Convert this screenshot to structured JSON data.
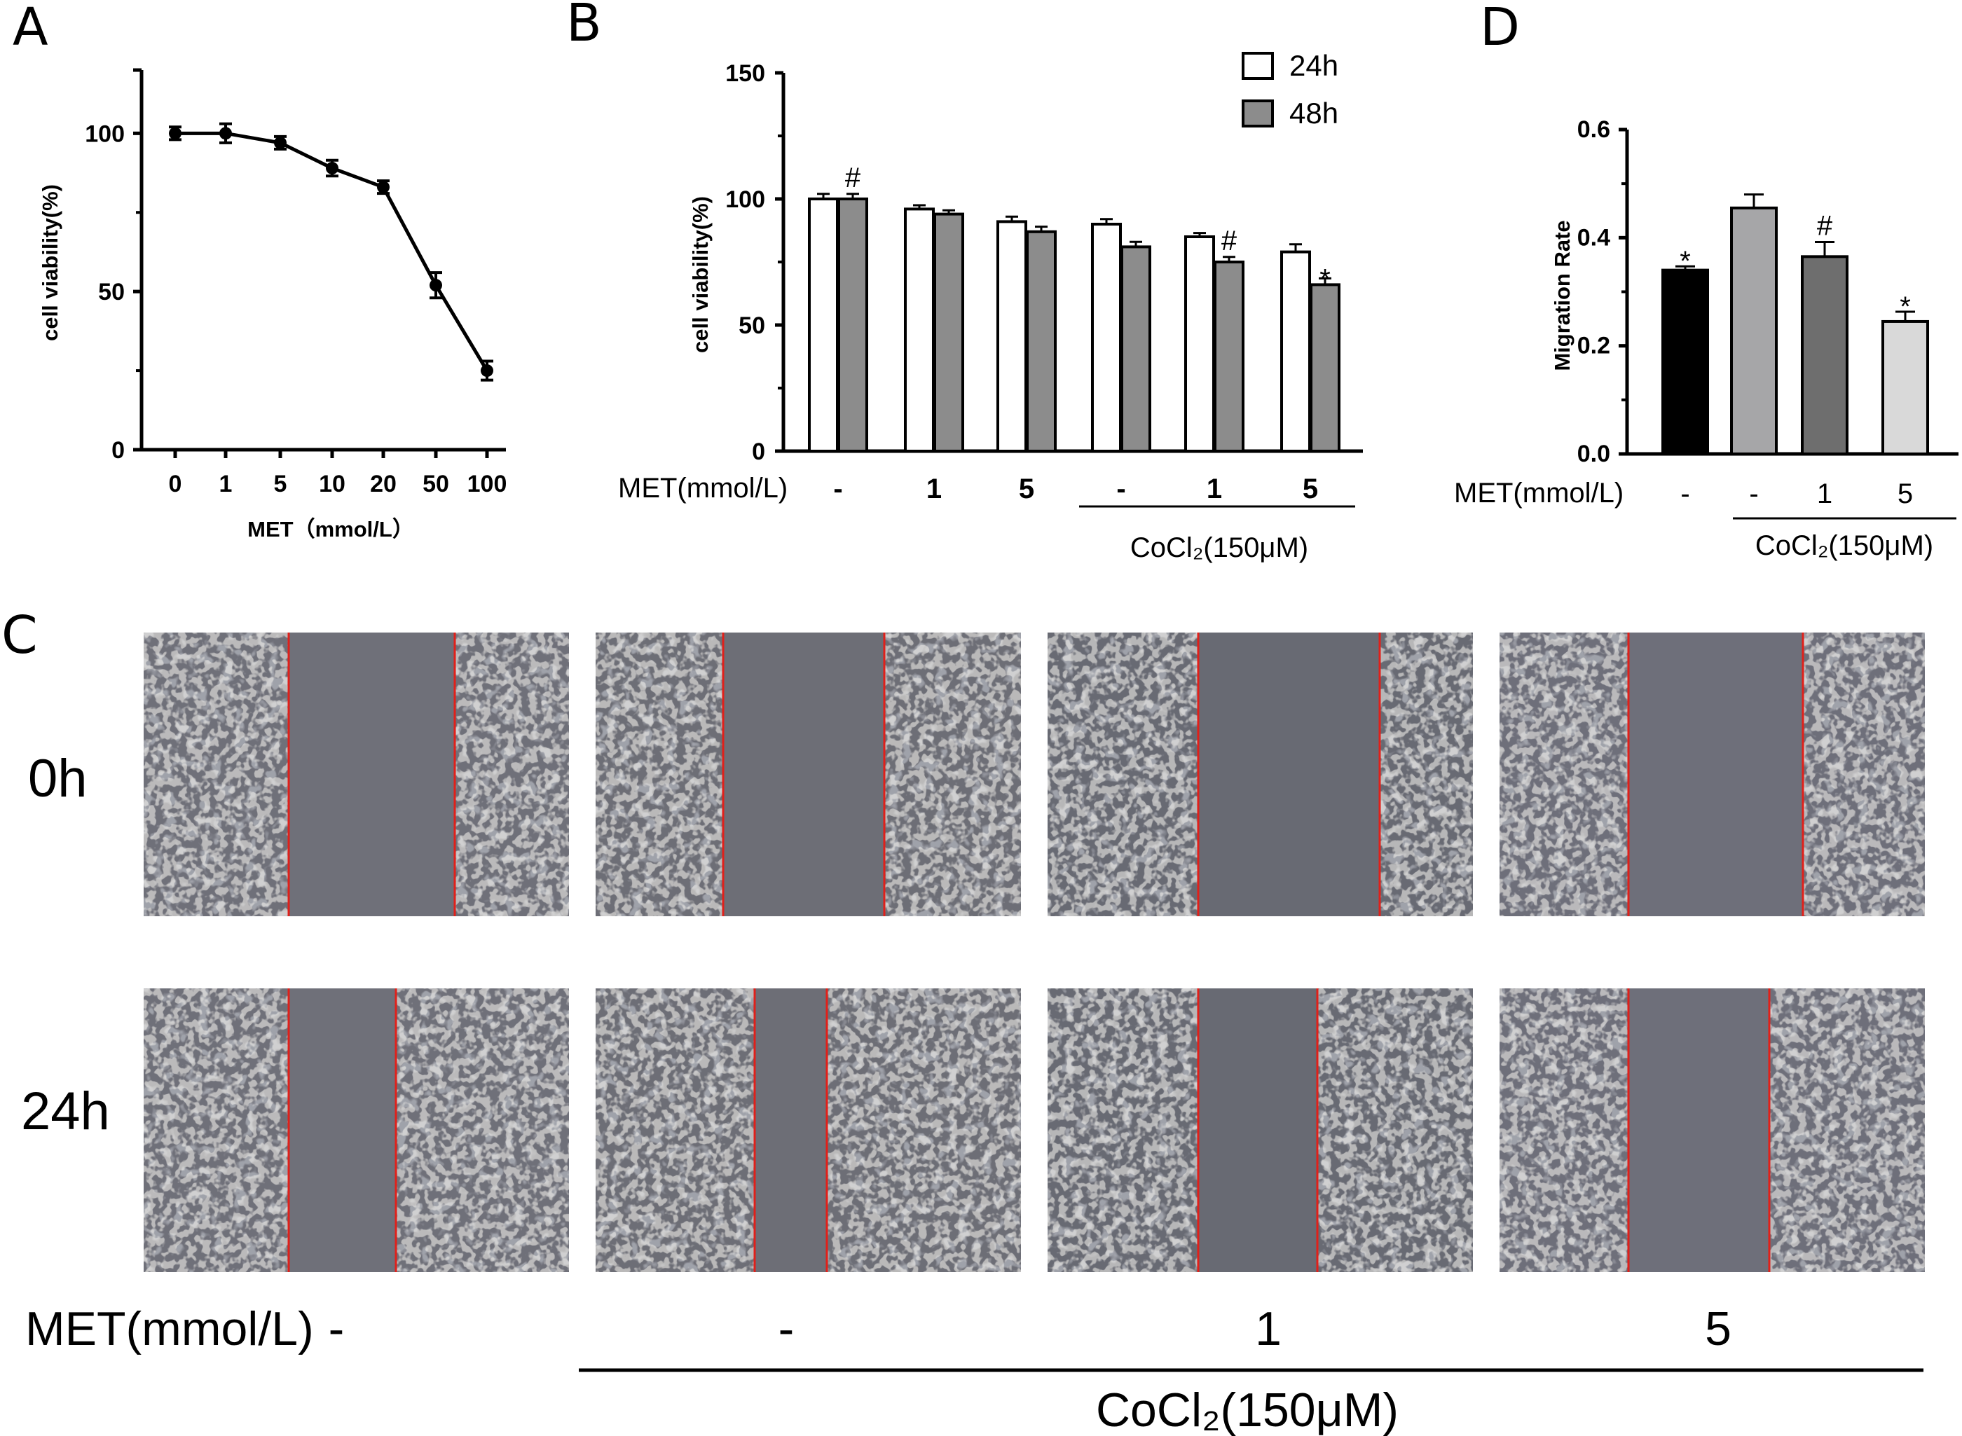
{
  "panels": {
    "A": "A",
    "B": "B",
    "C": "C",
    "D": "D"
  },
  "chart_data": [
    {
      "panel": "A",
      "type": "line",
      "categories": [
        "0",
        "1",
        "5",
        "10",
        "20",
        "50",
        "100"
      ],
      "values": [
        100,
        100,
        97,
        89,
        83,
        52,
        25
      ],
      "errors": [
        2,
        3,
        2,
        2.5,
        2,
        4,
        3
      ],
      "xlabel": "MET（mmol/L）",
      "ylabel": "cell viability(%)",
      "yticks": [
        "0",
        "50",
        "100"
      ],
      "ylim": [
        0,
        120
      ],
      "grid": false
    },
    {
      "panel": "B",
      "type": "bar",
      "categories": [
        "-",
        "1",
        "5",
        "-",
        "1",
        "5"
      ],
      "series": [
        {
          "name": "24h",
          "values": [
            100,
            96,
            91,
            90,
            85,
            79
          ],
          "errors": [
            2,
            1.5,
            2,
            2,
            1.5,
            3
          ],
          "color": "#ffffff"
        },
        {
          "name": "48h",
          "values": [
            100,
            94,
            87,
            81,
            75,
            66
          ],
          "errors": [
            2,
            1.5,
            2,
            2,
            2,
            2.5
          ],
          "color": "#8c8c8c"
        }
      ],
      "annotations": [
        {
          "series": "48h",
          "index": 0,
          "text": "#"
        },
        {
          "series": "48h",
          "index": 4,
          "text": "#"
        },
        {
          "series": "48h",
          "index": 5,
          "text": "*"
        }
      ],
      "ylabel": "cell viability(%)",
      "yticks": [
        "0",
        "50",
        "100",
        "150"
      ],
      "ylim": [
        0,
        150
      ],
      "group_row_label": "MET(mmol/L)",
      "bracket_label": "CoCl₂(150μM)",
      "legend": "top-right",
      "grid": false
    },
    {
      "panel": "D",
      "type": "bar",
      "categories": [
        "-",
        "-",
        "1",
        "5"
      ],
      "values": [
        0.34,
        0.455,
        0.365,
        0.245
      ],
      "errors": [
        0.007,
        0.025,
        0.027,
        0.018
      ],
      "colors": [
        "#000000",
        "#a6a6a8",
        "#6e6e6e",
        "#d9d9d9"
      ],
      "annotations": [
        "*",
        "",
        "#",
        "*"
      ],
      "ylabel": "Migration Rate",
      "yticks": [
        "0.0",
        "0.2",
        "0.4",
        "0.6"
      ],
      "ylim": [
        0,
        0.6
      ],
      "group_row_label": "MET(mmol/L)",
      "bracket_label": "CoCl₂(150μM)",
      "grid": false
    }
  ],
  "panelC": {
    "rows": [
      "0h",
      "24h"
    ],
    "met_label": "MET(mmol/L)",
    "columns": [
      "-",
      "-",
      "1",
      "5"
    ],
    "bracket_label": "CoCl₂(150μM)"
  }
}
